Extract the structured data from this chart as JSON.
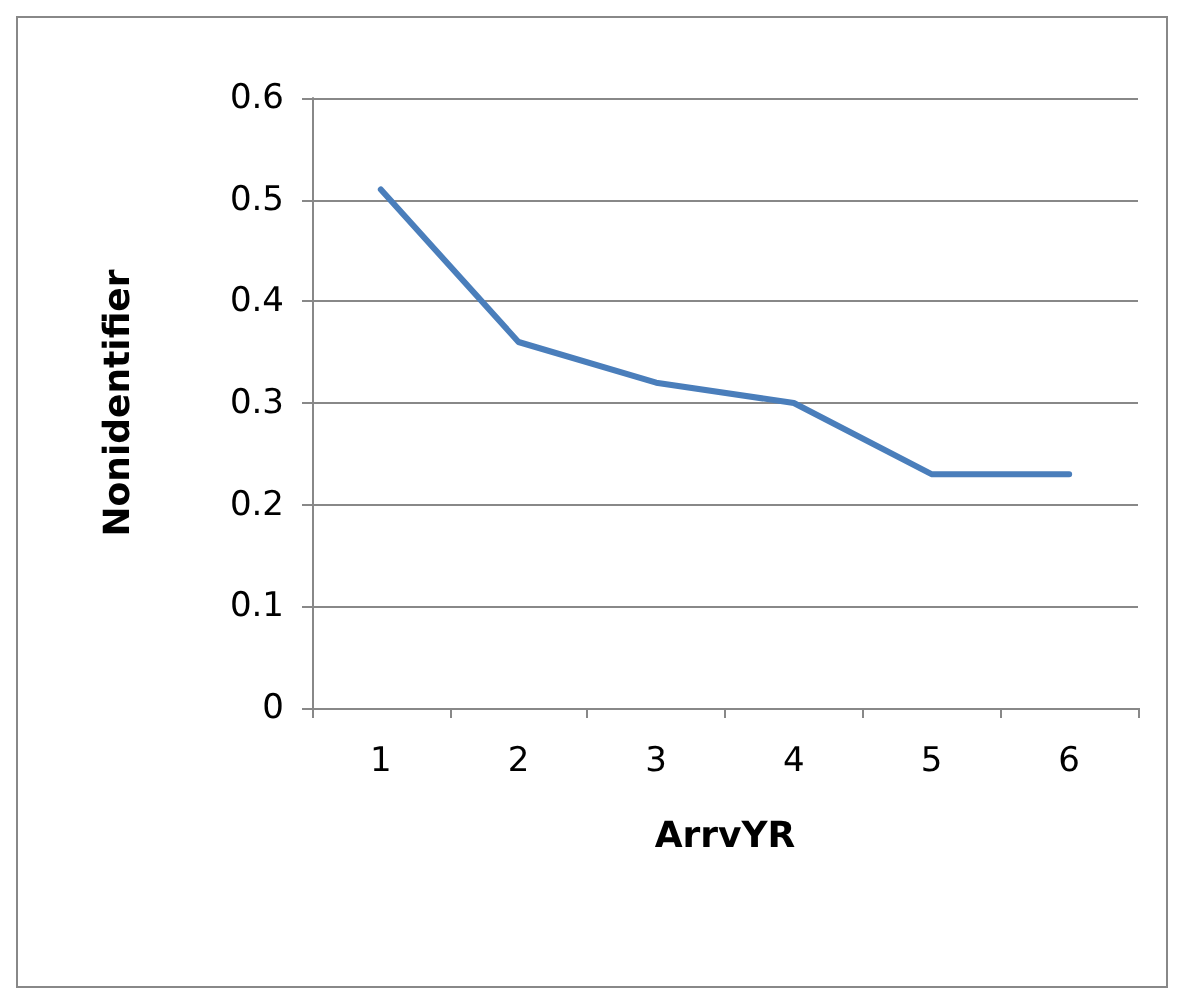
{
  "chart_data": {
    "type": "line",
    "xlabel": "ArrvYR",
    "ylabel": "Nonidentifier",
    "categories": [
      "1",
      "2",
      "3",
      "4",
      "5",
      "6"
    ],
    "series": [
      {
        "color": "#4a7ebb",
        "values": [
          0.51,
          0.36,
          0.32,
          0.3,
          0.23,
          0.23
        ]
      }
    ],
    "ylim": [
      0,
      0.6
    ],
    "yticks": [
      0,
      0.1,
      0.2,
      0.3,
      0.4,
      0.5,
      0.6
    ],
    "grid": "y",
    "marker": "none",
    "line_style": "solid"
  }
}
